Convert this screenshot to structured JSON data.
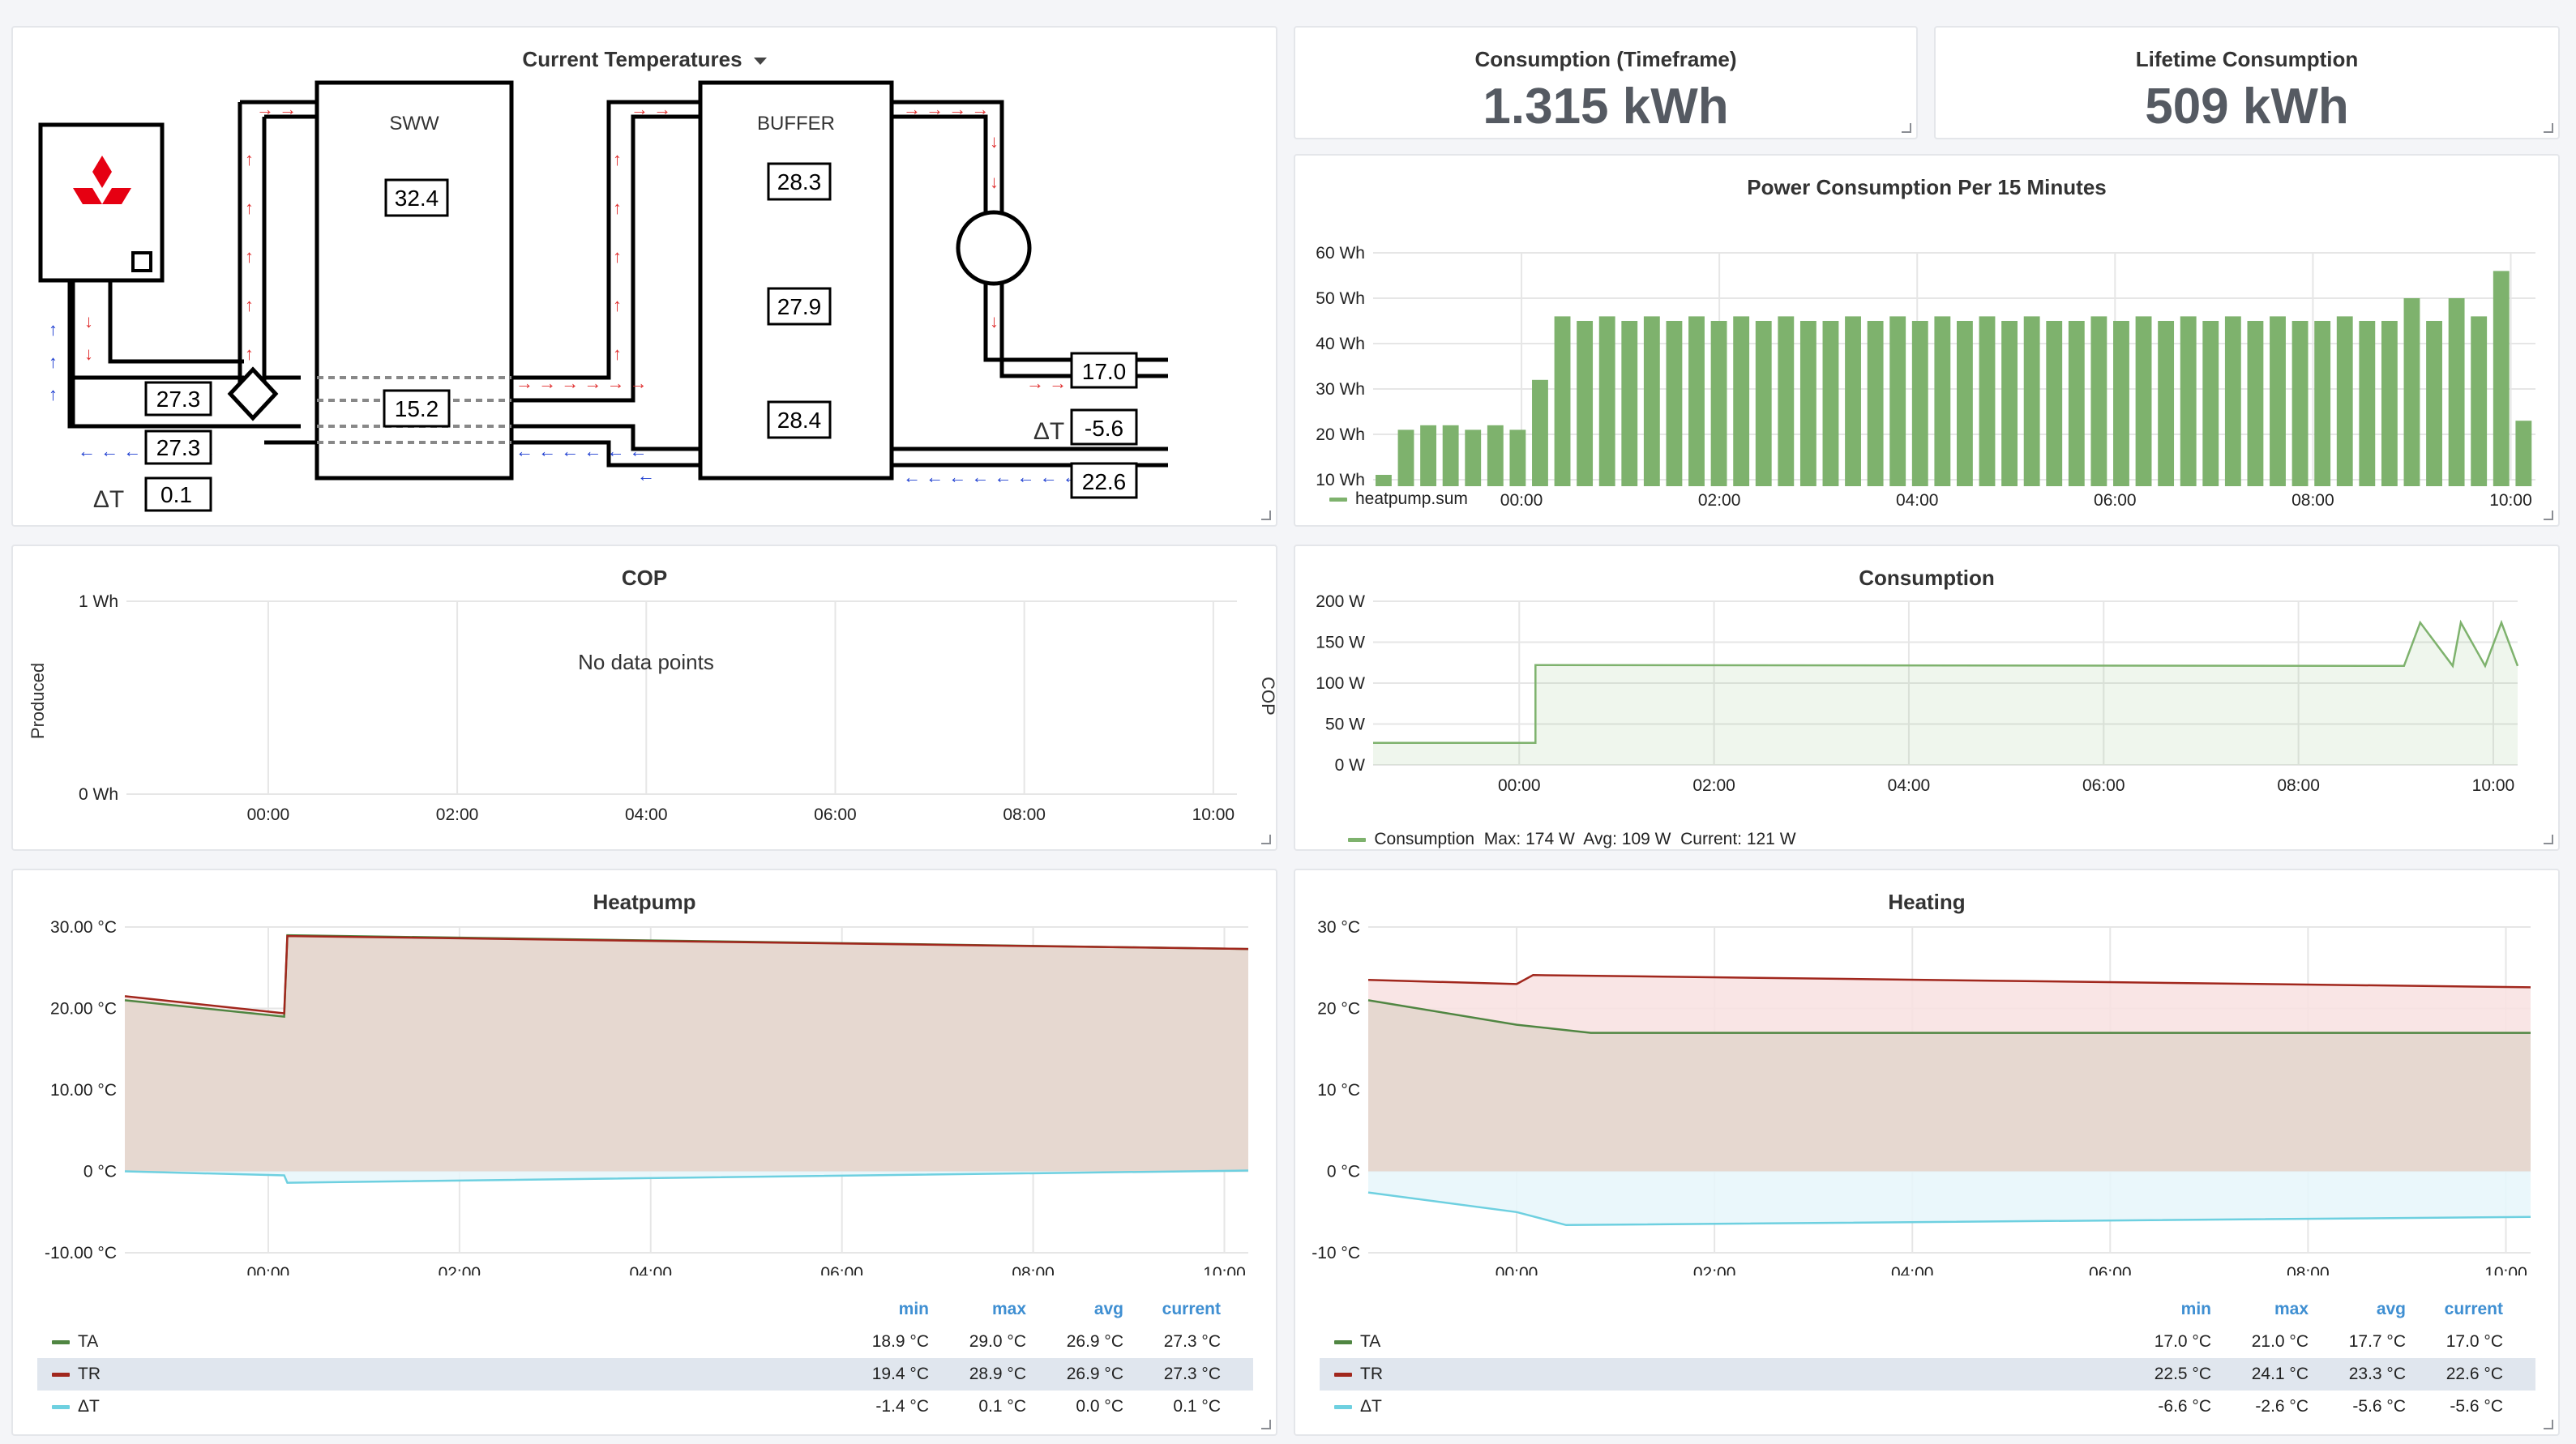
{
  "panels": {
    "temps": {
      "title": "Current Temperatures",
      "labels": {
        "sww": "SWW",
        "buffer": "BUFFER",
        "delta_left": "ΔT",
        "delta_right": "ΔT"
      },
      "values": {
        "sww_top": "32.4",
        "sww_mid": "15.2",
        "buf_top": "28.3",
        "buf_mid": "27.9",
        "buf_bot": "28.4",
        "hp_supply": "27.3",
        "hp_return": "27.3",
        "hp_delta": "0.1",
        "heat_supply": "17.0",
        "heat_delta": "-5.6",
        "heat_return": "22.6"
      }
    },
    "consumption_timeframe": {
      "title": "Consumption (Timeframe)",
      "value": "1.315 kWh"
    },
    "lifetime": {
      "title": "Lifetime Consumption",
      "value": "509 kWh"
    },
    "power15": {
      "title": "Power Consumption Per 15 Minutes",
      "legend": "heatpump.sum",
      "yticks": [
        "60 Wh",
        "50 Wh",
        "40 Wh",
        "30 Wh",
        "20 Wh",
        "10 Wh"
      ],
      "xticks": [
        "00:00",
        "02:00",
        "04:00",
        "06:00",
        "08:00",
        "10:00"
      ]
    },
    "cop": {
      "title": "COP",
      "message": "No data points",
      "ylabel": "Produced",
      "y2label": "COP",
      "yticks": [
        "1 Wh",
        "0 Wh"
      ],
      "xticks": [
        "00:00",
        "02:00",
        "04:00",
        "06:00",
        "08:00",
        "10:00"
      ]
    },
    "consumption": {
      "title": "Consumption",
      "yticks": [
        "200 W",
        "150 W",
        "100 W",
        "50 W",
        "0 W"
      ],
      "xticks": [
        "00:00",
        "02:00",
        "04:00",
        "06:00",
        "08:00",
        "10:00"
      ],
      "legend": "Consumption  Max: 174 W  Avg: 109 W  Current: 121 W"
    },
    "heatpump": {
      "title": "Heatpump",
      "yticks": [
        "30.00 °C",
        "20.00 °C",
        "10.00 °C",
        "0 °C",
        "-10.00 °C"
      ],
      "xticks": [
        "00:00",
        "02:00",
        "04:00",
        "06:00",
        "08:00",
        "10:00"
      ],
      "headers": [
        "min",
        "max",
        "avg",
        "current"
      ],
      "rows": [
        {
          "name": "TA",
          "min": "18.9 °C",
          "max": "29.0 °C",
          "avg": "26.9 °C",
          "current": "27.3 °C"
        },
        {
          "name": "TR",
          "min": "19.4 °C",
          "max": "28.9 °C",
          "avg": "26.9 °C",
          "current": "27.3 °C"
        },
        {
          "name": "ΔT",
          "min": "-1.4 °C",
          "max": "0.1 °C",
          "avg": "0.0 °C",
          "current": "0.1 °C"
        }
      ]
    },
    "heating": {
      "title": "Heating",
      "yticks": [
        "30 °C",
        "20 °C",
        "10 °C",
        "0 °C",
        "-10 °C"
      ],
      "xticks": [
        "00:00",
        "02:00",
        "04:00",
        "06:00",
        "08:00",
        "10:00"
      ],
      "headers": [
        "min",
        "max",
        "avg",
        "current"
      ],
      "rows": [
        {
          "name": "TA",
          "min": "17.0 °C",
          "max": "21.0 °C",
          "avg": "17.7 °C",
          "current": "17.0 °C"
        },
        {
          "name": "TR",
          "min": "22.5 °C",
          "max": "24.1 °C",
          "avg": "23.3 °C",
          "current": "22.6 °C"
        },
        {
          "name": "ΔT",
          "min": "-6.6 °C",
          "max": "-2.6 °C",
          "avg": "-5.6 °C",
          "current": "-5.6 °C"
        }
      ]
    }
  },
  "colors": {
    "green": "#7eb26d",
    "red": "#a1271d",
    "olive": "#508642",
    "cyan": "#6ed0e0",
    "blue_arrow": "#1f3fd1",
    "red_arrow": "#e02f2f"
  },
  "chart_data": [
    {
      "type": "bar",
      "title": "Power Consumption Per 15 Minutes",
      "series": [
        {
          "name": "heatpump.sum",
          "values": [
            11,
            21,
            22,
            22,
            21,
            22,
            21,
            32,
            46,
            45,
            46,
            45,
            46,
            45,
            46,
            45,
            46,
            45,
            46,
            45,
            45,
            46,
            45,
            46,
            45,
            46,
            45,
            46,
            45,
            46,
            45,
            45,
            46,
            45,
            46,
            45,
            46,
            45,
            46,
            45,
            46,
            45,
            45,
            46,
            45,
            45,
            50,
            45,
            50,
            46,
            56,
            23
          ]
        }
      ],
      "x_range": [
        "-01:30",
        "10:15"
      ],
      "ylim": [
        10,
        60
      ],
      "yunit": "Wh"
    },
    {
      "type": "line",
      "title": "COP",
      "series": [],
      "ylim": [
        0,
        1
      ]
    },
    {
      "type": "area",
      "title": "Consumption",
      "series": [
        {
          "name": "Consumption",
          "x": [
            "-01:30",
            "00:10",
            "00:10",
            "09:00",
            "09:05",
            "09:15",
            "09:35",
            "09:40",
            "09:55",
            "10:05",
            "10:15"
          ],
          "y": [
            27,
            27,
            122,
            121,
            121,
            174,
            121,
            174,
            121,
            174,
            121
          ]
        }
      ],
      "ylim": [
        0,
        200
      ],
      "yunit": "W"
    },
    {
      "type": "area",
      "title": "Heatpump",
      "series": [
        {
          "name": "TA",
          "x": [
            "-01:30",
            "00:10",
            "00:12",
            "10:15"
          ],
          "y": [
            21,
            19,
            29,
            27.3
          ]
        },
        {
          "name": "TR",
          "x": [
            "-01:30",
            "00:10",
            "00:12",
            "10:15"
          ],
          "y": [
            21.5,
            19.4,
            28.9,
            27.3
          ]
        },
        {
          "name": "ΔT",
          "x": [
            "-01:30",
            "00:10",
            "00:12",
            "10:15"
          ],
          "y": [
            0,
            -0.5,
            -1.4,
            0.1
          ]
        }
      ],
      "ylim": [
        -10,
        30
      ],
      "yunit": "°C"
    },
    {
      "type": "area",
      "title": "Heating",
      "series": [
        {
          "name": "TA",
          "x": [
            "-01:30",
            "00:00",
            "00:45",
            "10:15"
          ],
          "y": [
            21,
            18,
            17,
            17
          ]
        },
        {
          "name": "TR",
          "x": [
            "-01:30",
            "00:00",
            "00:10",
            "10:15"
          ],
          "y": [
            23.5,
            23,
            24.1,
            22.6
          ]
        },
        {
          "name": "ΔT",
          "x": [
            "-01:30",
            "00:00",
            "00:30",
            "10:15"
          ],
          "y": [
            -2.6,
            -5,
            -6.6,
            -5.6
          ]
        }
      ],
      "ylim": [
        -10,
        30
      ],
      "yunit": "°C"
    }
  ]
}
